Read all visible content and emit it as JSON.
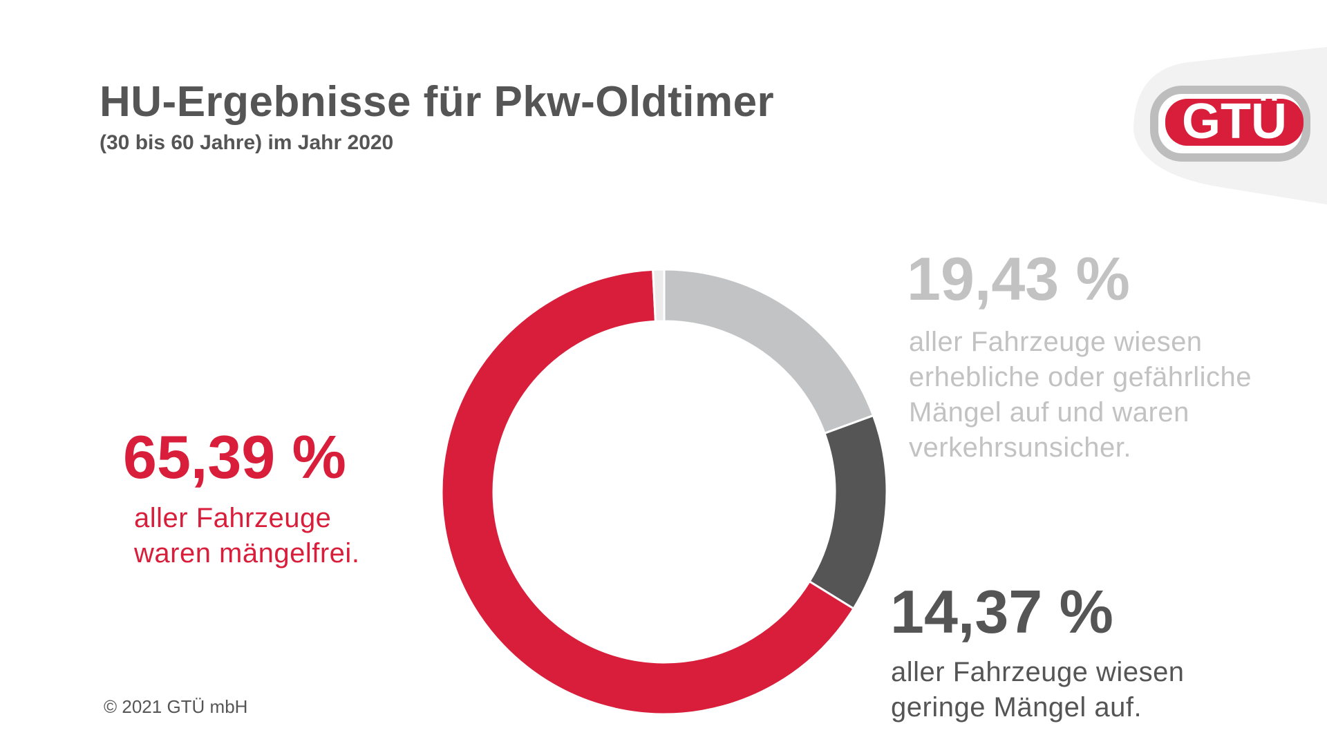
{
  "title": "HU-Ergebnisse für Pkw-Oldtimer",
  "subtitle": "(30 bis 60 Jahre) im Jahr 2020",
  "logo": {
    "text": "GTÜ",
    "color": "#d81e3a"
  },
  "copyright": "© 2021 GTÜ mbH",
  "callouts": {
    "free": {
      "value": "65,39 %",
      "lines": [
        "aller Fahrzeuge",
        "waren mängelfrei."
      ]
    },
    "unsafe": {
      "value": "19,43 %",
      "lines": [
        "aller Fahrzeuge wiesen",
        "erhebliche oder gefährliche",
        "Mängel auf und waren",
        "verkehrsunsicher."
      ]
    },
    "minor": {
      "value": "14,37 %",
      "lines": [
        "aller Fahrzeuge wiesen",
        "geringe Mängel auf."
      ]
    }
  },
  "chart_data": {
    "type": "pie",
    "style": "donut",
    "title": "",
    "series": [
      {
        "value": 19.43,
        "color": "#c2c3c4"
      },
      {
        "value": 14.37,
        "color": "#555555"
      },
      {
        "value": 65.39,
        "color": "#d81e3a"
      },
      {
        "value": 0.81,
        "color": "#ebebeb"
      }
    ]
  }
}
